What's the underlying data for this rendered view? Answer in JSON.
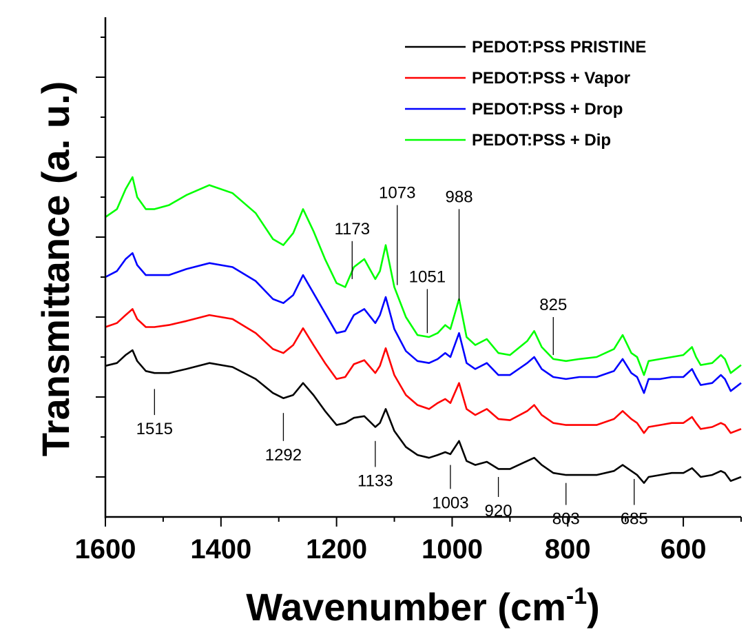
{
  "chart_data": {
    "type": "line",
    "xlabel": "Wavenumber (cm",
    "xlabel_sup": "-1",
    "xlabel_close": ")",
    "ylabel": "Transmittance (a. u.)",
    "xlim": [
      1600,
      500
    ],
    "x_reversed": true,
    "ylim": [
      0,
      12.5
    ],
    "y_ticklabels_shown": false,
    "x_ticks": [
      1600,
      1400,
      1200,
      1000,
      800,
      600
    ],
    "x_tick_labels": [
      "1600",
      "1400",
      "1200",
      "1000",
      "800",
      "600"
    ],
    "legend_position": "top-right",
    "series": [
      {
        "name": "PEDOT:PSS PRISTINE",
        "color": "#000000",
        "x": [
          1600,
          1580,
          1565,
          1553,
          1545,
          1530,
          1515,
          1490,
          1460,
          1420,
          1380,
          1340,
          1310,
          1292,
          1275,
          1258,
          1240,
          1220,
          1200,
          1185,
          1170,
          1152,
          1133,
          1125,
          1115,
          1100,
          1080,
          1060,
          1040,
          1025,
          1012,
          1003,
          988,
          975,
          960,
          940,
          920,
          900,
          870,
          858,
          845,
          825,
          803,
          780,
          750,
          720,
          705,
          690,
          680,
          668,
          660,
          640,
          620,
          600,
          585,
          578,
          570,
          550,
          535,
          528,
          518,
          500
        ],
        "y": [
          3.78,
          3.85,
          4.05,
          4.17,
          3.9,
          3.65,
          3.6,
          3.6,
          3.7,
          3.85,
          3.75,
          3.45,
          3.1,
          2.97,
          3.05,
          3.35,
          3.05,
          2.65,
          2.3,
          2.35,
          2.48,
          2.52,
          2.25,
          2.35,
          2.7,
          2.15,
          1.75,
          1.55,
          1.48,
          1.55,
          1.62,
          1.57,
          1.9,
          1.4,
          1.3,
          1.38,
          1.2,
          1.2,
          1.4,
          1.48,
          1.3,
          1.1,
          1.05,
          1.05,
          1.05,
          1.15,
          1.3,
          1.15,
          1.05,
          0.85,
          1.0,
          1.05,
          1.1,
          1.1,
          1.22,
          1.12,
          1.0,
          1.05,
          1.15,
          1.1,
          0.9,
          1.0
        ]
      },
      {
        "name": "PEDOT:PSS + Vapor",
        "color": "#ff0000",
        "x": [
          1600,
          1580,
          1565,
          1553,
          1545,
          1530,
          1515,
          1490,
          1460,
          1420,
          1380,
          1340,
          1310,
          1292,
          1275,
          1258,
          1240,
          1220,
          1200,
          1185,
          1170,
          1152,
          1133,
          1125,
          1115,
          1100,
          1080,
          1060,
          1040,
          1025,
          1012,
          1003,
          988,
          975,
          960,
          940,
          920,
          900,
          870,
          858,
          845,
          825,
          803,
          780,
          750,
          720,
          705,
          690,
          680,
          668,
          660,
          640,
          620,
          600,
          585,
          578,
          570,
          550,
          535,
          528,
          518,
          500
        ],
        "y": [
          4.75,
          4.85,
          5.05,
          5.2,
          4.95,
          4.75,
          4.75,
          4.8,
          4.9,
          5.05,
          4.95,
          4.6,
          4.2,
          4.1,
          4.3,
          4.72,
          4.3,
          3.85,
          3.45,
          3.5,
          3.82,
          3.92,
          3.6,
          3.78,
          4.22,
          3.55,
          3.05,
          2.8,
          2.7,
          2.85,
          2.95,
          2.85,
          3.35,
          2.7,
          2.55,
          2.7,
          2.45,
          2.42,
          2.65,
          2.8,
          2.55,
          2.35,
          2.3,
          2.3,
          2.3,
          2.45,
          2.65,
          2.45,
          2.35,
          2.1,
          2.25,
          2.3,
          2.35,
          2.35,
          2.5,
          2.35,
          2.2,
          2.25,
          2.35,
          2.3,
          2.1,
          2.2
        ]
      },
      {
        "name": "PEDOT:PSS + Drop",
        "color": "#0000ff",
        "x": [
          1600,
          1580,
          1565,
          1553,
          1545,
          1530,
          1515,
          1490,
          1460,
          1420,
          1380,
          1340,
          1310,
          1292,
          1275,
          1258,
          1240,
          1220,
          1200,
          1185,
          1170,
          1152,
          1133,
          1125,
          1115,
          1100,
          1080,
          1060,
          1040,
          1025,
          1012,
          1003,
          988,
          975,
          960,
          940,
          920,
          900,
          870,
          858,
          845,
          825,
          803,
          780,
          750,
          720,
          705,
          690,
          680,
          668,
          660,
          640,
          620,
          600,
          585,
          578,
          570,
          550,
          535,
          528,
          518,
          500
        ],
        "y": [
          6.0,
          6.15,
          6.45,
          6.6,
          6.3,
          6.05,
          6.05,
          6.05,
          6.2,
          6.35,
          6.25,
          5.9,
          5.45,
          5.35,
          5.55,
          6.05,
          5.6,
          5.1,
          4.6,
          4.65,
          5.05,
          5.2,
          4.85,
          5.05,
          5.5,
          4.7,
          4.15,
          3.9,
          3.85,
          3.95,
          4.1,
          4.0,
          4.6,
          3.85,
          3.7,
          3.85,
          3.55,
          3.55,
          3.85,
          4.0,
          3.7,
          3.5,
          3.45,
          3.5,
          3.5,
          3.65,
          3.95,
          3.6,
          3.5,
          3.1,
          3.45,
          3.45,
          3.5,
          3.5,
          3.7,
          3.5,
          3.3,
          3.35,
          3.55,
          3.45,
          3.15,
          3.35
        ]
      },
      {
        "name": "PEDOT:PSS + Dip",
        "color": "#00ff00",
        "x": [
          1600,
          1580,
          1565,
          1553,
          1545,
          1530,
          1515,
          1490,
          1460,
          1420,
          1380,
          1340,
          1310,
          1292,
          1275,
          1258,
          1240,
          1220,
          1200,
          1185,
          1170,
          1152,
          1133,
          1125,
          1115,
          1100,
          1080,
          1060,
          1040,
          1025,
          1012,
          1003,
          988,
          975,
          960,
          940,
          920,
          900,
          870,
          858,
          845,
          825,
          803,
          780,
          750,
          720,
          705,
          690,
          680,
          668,
          660,
          640,
          620,
          600,
          585,
          578,
          570,
          550,
          535,
          528,
          518,
          500
        ],
        "y": [
          7.5,
          7.7,
          8.2,
          8.5,
          8.0,
          7.7,
          7.7,
          7.8,
          8.05,
          8.3,
          8.1,
          7.6,
          6.95,
          6.8,
          7.1,
          7.7,
          7.15,
          6.45,
          5.85,
          5.75,
          6.25,
          6.45,
          5.95,
          6.15,
          6.8,
          5.75,
          5.0,
          4.55,
          4.5,
          4.6,
          4.8,
          4.7,
          5.45,
          4.5,
          4.3,
          4.45,
          4.1,
          4.05,
          4.4,
          4.65,
          4.25,
          3.95,
          3.9,
          3.95,
          4.0,
          4.2,
          4.55,
          4.1,
          4.0,
          3.55,
          3.9,
          3.95,
          4.0,
          4.05,
          4.25,
          4.0,
          3.8,
          3.85,
          4.05,
          3.95,
          3.6,
          3.8
        ]
      }
    ],
    "annotations": [
      {
        "label": "1515",
        "x": 1515,
        "y1": 3.2,
        "y2": 2.55
      },
      {
        "label": "1292",
        "x": 1292,
        "y1": 2.6,
        "y2": 1.9
      },
      {
        "label": "1133",
        "x": 1133,
        "y1": 1.9,
        "y2": 1.25
      },
      {
        "label": "1003",
        "x": 1003,
        "y1": 1.3,
        "y2": 0.7
      },
      {
        "label": "920",
        "x": 920,
        "y1": 1.0,
        "y2": 0.5
      },
      {
        "label": "803",
        "x": 803,
        "y1": 0.85,
        "y2": 0.3
      },
      {
        "label": "685",
        "x": 685,
        "y1": 0.95,
        "y2": 0.3
      },
      {
        "label": "1173",
        "x": 1173,
        "y1": 6.9,
        "y2": 5.95
      },
      {
        "label": "1073",
        "x": 1095,
        "y1": 7.8,
        "y2": 5.8
      },
      {
        "label": "1051",
        "x": 1043,
        "y1": 5.7,
        "y2": 4.6
      },
      {
        "label": "988",
        "x": 988,
        "y1": 7.7,
        "y2": 5.4
      },
      {
        "label": "825",
        "x": 825,
        "y1": 5.0,
        "y2": 4.05
      }
    ]
  }
}
